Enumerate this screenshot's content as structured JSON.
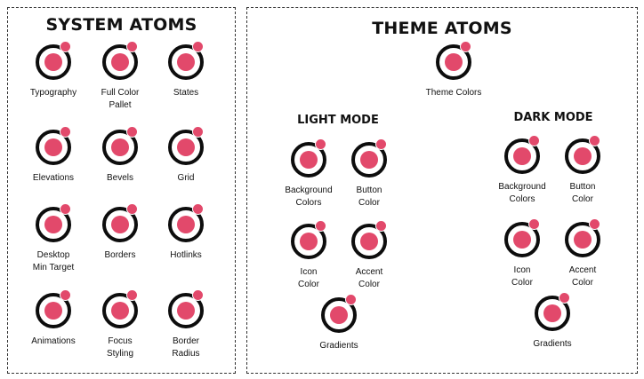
{
  "panels": {
    "system_title": "SYSTEM ATOMS",
    "theme_title": "THEME ATOMS",
    "light_title": "LIGHT MODE",
    "dark_title": "DARK MODE"
  },
  "system_atoms": [
    {
      "label": "Typography"
    },
    {
      "label": "Full Color\nPallet"
    },
    {
      "label": "States"
    },
    {
      "label": "Elevations"
    },
    {
      "label": "Bevels"
    },
    {
      "label": "Grid"
    },
    {
      "label": "Desktop\nMin Target"
    },
    {
      "label": "Borders"
    },
    {
      "label": "Hotlinks"
    },
    {
      "label": "Animations"
    },
    {
      "label": "Focus\nStyling"
    },
    {
      "label": "Border\nRadius"
    }
  ],
  "theme_atoms": [
    {
      "label": "Theme Colors"
    }
  ],
  "light_atoms": [
    {
      "label": "Background\nColors"
    },
    {
      "label": "Button\nColor"
    },
    {
      "label": "Icon\nColor"
    },
    {
      "label": "Accent\nColor"
    },
    {
      "label": "Gradients"
    }
  ],
  "dark_atoms": [
    {
      "label": "Background\nColors"
    },
    {
      "label": "Button\nColor"
    },
    {
      "label": "Icon\nColor"
    },
    {
      "label": "Accent\nColor"
    },
    {
      "label": "Gradients"
    }
  ],
  "colors": {
    "accent": "#e2496b",
    "ring": "#0d0d0d"
  },
  "icon": "atom-icon"
}
